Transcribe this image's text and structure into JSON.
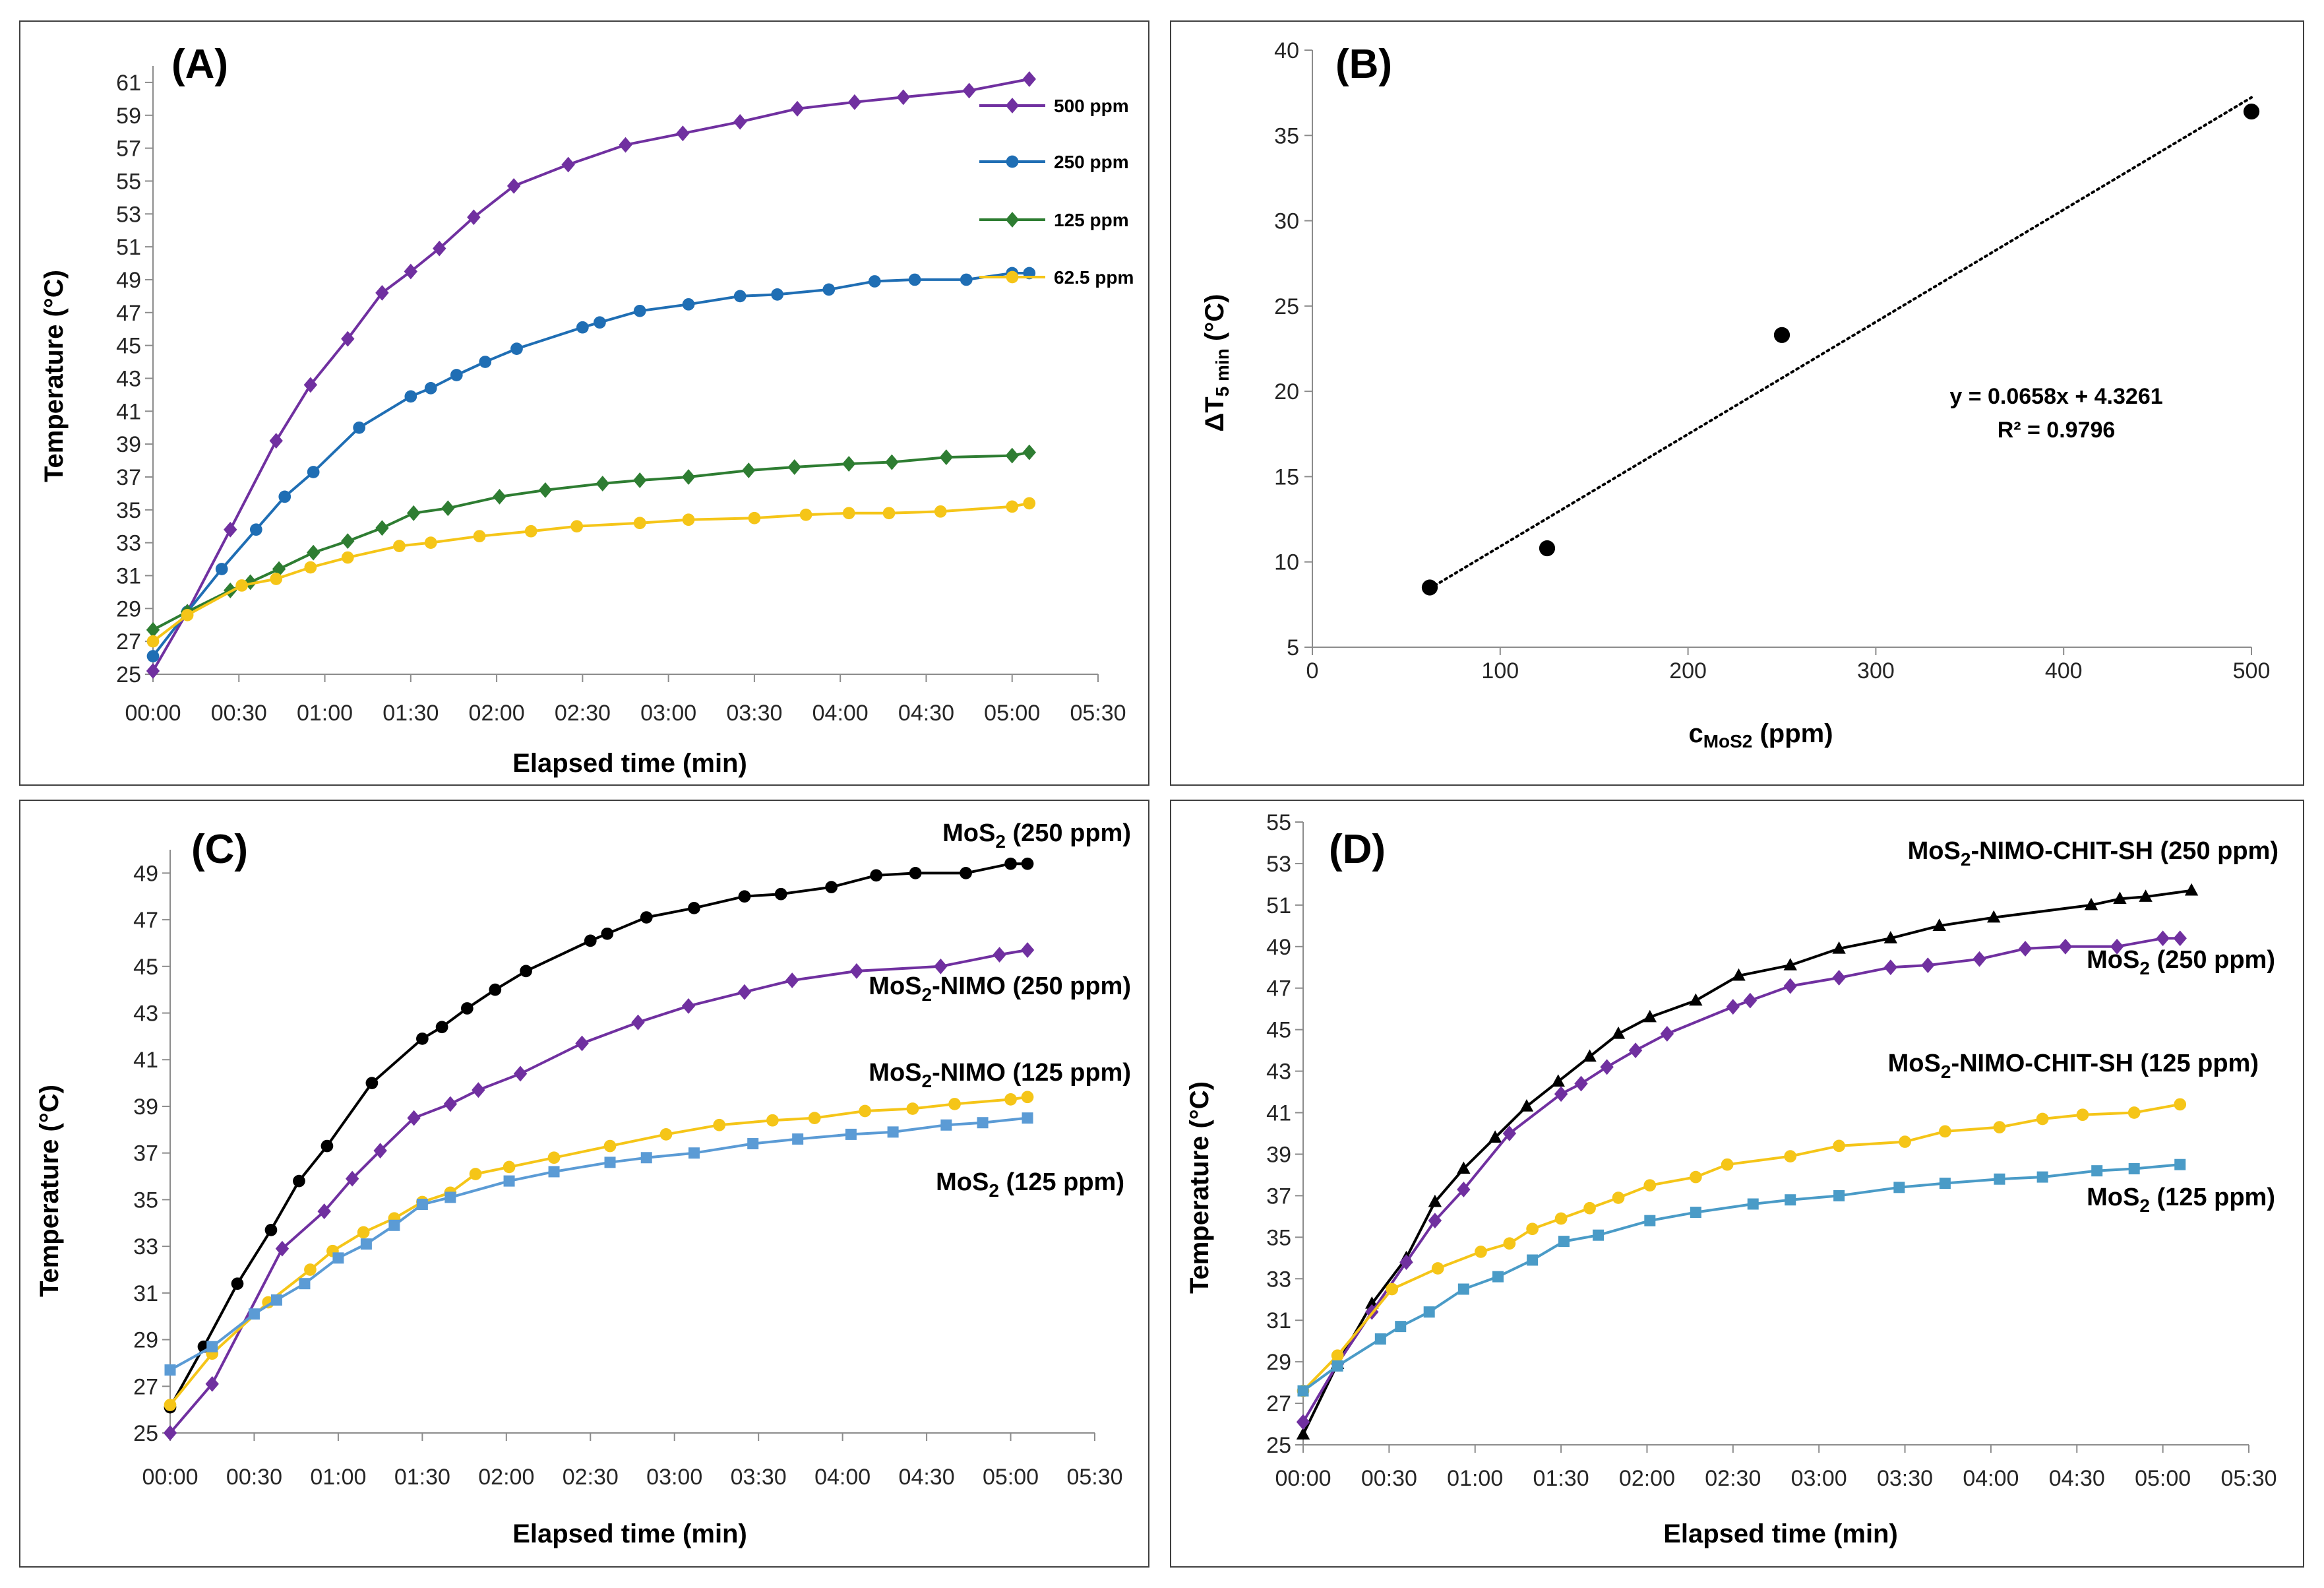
{
  "chart_data": [
    {
      "id": "A",
      "type": "line",
      "panel_label": "(A)",
      "xlabel": "Elapsed time (min)",
      "ylabel": "Temperature (°C)",
      "xlim": [
        0,
        330
      ],
      "ylim": [
        25,
        62
      ],
      "xticks": [
        0,
        30,
        60,
        90,
        120,
        150,
        180,
        210,
        240,
        270,
        300,
        330
      ],
      "xtick_labels": [
        "00:00",
        "00:30",
        "01:00",
        "01:30",
        "02:00",
        "02:30",
        "03:00",
        "03:30",
        "04:00",
        "04:30",
        "05:00",
        "05:30"
      ],
      "yticks": [
        25,
        27,
        29,
        31,
        33,
        35,
        37,
        39,
        41,
        43,
        45,
        47,
        49,
        51,
        53,
        55,
        57,
        59,
        61
      ],
      "legend_position": "top-right",
      "series": [
        {
          "name": "500 ppm",
          "color": "#7030a0",
          "marker": "diamond",
          "x": [
            0,
            12,
            27,
            43,
            55,
            68,
            80,
            90,
            100,
            112,
            126,
            145,
            165,
            185,
            205,
            225,
            245,
            262,
            285,
            306
          ],
          "y": [
            25.2,
            28.8,
            33.8,
            39.2,
            42.6,
            45.4,
            48.2,
            49.5,
            50.9,
            52.8,
            54.7,
            56.0,
            57.2,
            57.9,
            58.6,
            59.4,
            59.8,
            60.1,
            60.5,
            61.2
          ]
        },
        {
          "name": "250 ppm",
          "color": "#1f6eb4",
          "marker": "circle",
          "x": [
            0,
            12,
            24,
            36,
            46,
            56,
            72,
            90,
            97,
            106,
            116,
            127,
            150,
            156,
            170,
            187,
            205,
            218,
            236,
            252,
            266,
            284,
            300,
            306
          ],
          "y": [
            26.1,
            28.8,
            31.4,
            33.8,
            35.8,
            37.3,
            40.0,
            41.9,
            42.4,
            43.2,
            44.0,
            44.8,
            46.1,
            46.4,
            47.1,
            47.5,
            48.0,
            48.1,
            48.4,
            48.9,
            49.0,
            49.0,
            49.4,
            49.4
          ]
        },
        {
          "name": "125 ppm",
          "color": "#2e7d32",
          "marker": "diamond",
          "x": [
            0,
            12,
            27,
            34,
            44,
            56,
            68,
            80,
            91,
            103,
            121,
            137,
            157,
            170,
            187,
            208,
            224,
            243,
            258,
            277,
            300,
            306
          ],
          "y": [
            27.7,
            28.8,
            30.1,
            30.6,
            31.4,
            32.4,
            33.1,
            33.9,
            34.8,
            35.1,
            35.8,
            36.2,
            36.6,
            36.8,
            37.0,
            37.4,
            37.6,
            37.8,
            37.9,
            38.2,
            38.3,
            38.5
          ]
        },
        {
          "name": "62.5 ppm",
          "color": "#f5c518",
          "marker": "circle",
          "x": [
            0,
            12,
            31,
            43,
            55,
            68,
            86,
            97,
            114,
            132,
            148,
            170,
            187,
            210,
            228,
            243,
            257,
            275,
            300,
            306
          ],
          "y": [
            27.0,
            28.6,
            30.4,
            30.8,
            31.5,
            32.1,
            32.8,
            33.0,
            33.4,
            33.7,
            34.0,
            34.2,
            34.4,
            34.5,
            34.7,
            34.8,
            34.8,
            34.9,
            35.2,
            35.4
          ]
        }
      ]
    },
    {
      "id": "B",
      "type": "scatter",
      "panel_label": "(B)",
      "xlabel": "c",
      "xlabel_sub": "MoS2",
      "xlabel_suffix": " (ppm)",
      "ylabel": "ΔT",
      "ylabel_sub": "5 min",
      "ylabel_suffix": " (°C)",
      "xlim": [
        0,
        500
      ],
      "ylim": [
        5,
        40
      ],
      "xticks": [
        0,
        100,
        200,
        300,
        400,
        500
      ],
      "yticks": [
        5,
        10,
        15,
        20,
        25,
        30,
        35,
        40
      ],
      "points": {
        "x": [
          62.5,
          125,
          250,
          500
        ],
        "y": [
          8.5,
          10.8,
          23.3,
          36.4
        ]
      },
      "trendline": {
        "slope": 0.0658,
        "intercept": 4.3261,
        "x_range": [
          62.5,
          500
        ],
        "style": "dotted"
      },
      "equation": "y = 0.0658x + 4.3261",
      "r_squared": "R² = 0.9796",
      "marker_color": "#000000"
    },
    {
      "id": "C",
      "type": "line",
      "panel_label": "(C)",
      "xlabel": "Elapsed time (min)",
      "ylabel": "Temperature (°C)",
      "xlim": [
        0,
        330
      ],
      "ylim": [
        25,
        50
      ],
      "xticks": [
        0,
        30,
        60,
        90,
        120,
        150,
        180,
        210,
        240,
        270,
        300,
        330
      ],
      "xtick_labels": [
        "00:00",
        "00:30",
        "01:00",
        "01:30",
        "02:00",
        "02:30",
        "03:00",
        "03:30",
        "04:00",
        "04:30",
        "05:00",
        "05:30"
      ],
      "yticks": [
        25,
        27,
        29,
        31,
        33,
        35,
        37,
        39,
        41,
        43,
        45,
        47,
        49
      ],
      "series": [
        {
          "name": "MoS2 (250 ppm)",
          "label_main": "MoS",
          "label_sub": "2",
          "label_rest": " (250 ppm)",
          "color": "#000000",
          "marker": "circle",
          "x": [
            0,
            12,
            24,
            36,
            46,
            56,
            72,
            90,
            97,
            106,
            116,
            127,
            150,
            156,
            170,
            187,
            205,
            218,
            236,
            252,
            266,
            284,
            300,
            306
          ],
          "y": [
            26.1,
            28.7,
            31.4,
            33.7,
            35.8,
            37.3,
            40.0,
            41.9,
            42.4,
            43.2,
            44.0,
            44.8,
            46.1,
            46.4,
            47.1,
            47.5,
            48.0,
            48.1,
            48.4,
            48.9,
            49.0,
            49.0,
            49.4,
            49.4
          ]
        },
        {
          "name": "MoS2-NIMO (250 ppm)",
          "label_main": "MoS",
          "label_sub": "2",
          "label_rest": "-NIMO (250 ppm)",
          "color": "#7030a0",
          "marker": "diamond",
          "x": [
            0,
            15,
            40,
            55,
            65,
            75,
            87,
            100,
            110,
            125,
            147,
            167,
            185,
            205,
            222,
            245,
            275,
            296,
            306
          ],
          "y": [
            25.0,
            27.1,
            32.9,
            34.5,
            35.9,
            37.1,
            38.5,
            39.1,
            39.7,
            40.4,
            41.7,
            42.6,
            43.3,
            43.9,
            44.4,
            44.8,
            45.0,
            45.5,
            45.7
          ]
        },
        {
          "name": "MoS2-NIMO (125 ppm)",
          "label_main": "MoS",
          "label_sub": "2",
          "label_rest": "-NIMO (125 ppm)",
          "color": "#f5c518",
          "marker": "circle",
          "x": [
            0,
            15,
            35,
            50,
            58,
            69,
            80,
            90,
            100,
            109,
            121,
            137,
            157,
            177,
            196,
            215,
            230,
            248,
            265,
            280,
            300,
            306
          ],
          "y": [
            26.2,
            28.4,
            30.6,
            32.0,
            32.8,
            33.6,
            34.2,
            34.9,
            35.3,
            36.1,
            36.4,
            36.8,
            37.3,
            37.8,
            38.2,
            38.4,
            38.5,
            38.8,
            38.9,
            39.1,
            39.3,
            39.4
          ]
        },
        {
          "name": "MoS2 (125 ppm)",
          "label_main": "MoS",
          "label_sub": "2",
          "label_rest": " (125 ppm)",
          "color": "#5b9bd5",
          "marker": "square",
          "x": [
            0,
            15,
            30,
            38,
            48,
            60,
            70,
            80,
            90,
            100,
            121,
            137,
            157,
            170,
            187,
            208,
            224,
            243,
            258,
            277,
            290,
            306
          ],
          "y": [
            27.7,
            28.7,
            30.1,
            30.7,
            31.4,
            32.5,
            33.1,
            33.9,
            34.8,
            35.1,
            35.8,
            36.2,
            36.6,
            36.8,
            37.0,
            37.4,
            37.6,
            37.8,
            37.9,
            38.2,
            38.3,
            38.5
          ]
        }
      ]
    },
    {
      "id": "D",
      "type": "line",
      "panel_label": "(D)",
      "xlabel": "Elapsed time (min)",
      "ylabel": "Temperature (°C)",
      "xlim": [
        0,
        330
      ],
      "ylim": [
        25,
        55
      ],
      "xticks": [
        0,
        30,
        60,
        90,
        120,
        150,
        180,
        210,
        240,
        270,
        300,
        330
      ],
      "xtick_labels": [
        "00:00",
        "00:30",
        "01:00",
        "01:30",
        "02:00",
        "02:30",
        "03:00",
        "03:30",
        "04:00",
        "04:30",
        "05:00",
        "05:30"
      ],
      "yticks": [
        25,
        27,
        29,
        31,
        33,
        35,
        37,
        39,
        41,
        43,
        45,
        47,
        49,
        51,
        53,
        55
      ],
      "series": [
        {
          "name": "MoS2-NIMO-CHIT-SH (250 ppm)",
          "label_main": "MoS",
          "label_sub": "2",
          "label_rest": "-NIMO-CHIT-SH (250 ppm)",
          "color": "#000000",
          "marker": "triangle",
          "x": [
            0,
            12,
            24,
            36,
            46,
            56,
            67,
            78,
            89,
            100,
            110,
            121,
            137,
            152,
            170,
            187,
            205,
            222,
            241,
            275,
            285,
            294,
            310
          ],
          "y": [
            25.5,
            28.9,
            31.8,
            34.0,
            36.7,
            38.3,
            39.8,
            41.3,
            42.5,
            43.7,
            44.8,
            45.6,
            46.4,
            47.6,
            48.1,
            48.9,
            49.4,
            50.0,
            50.4,
            51.0,
            51.3,
            51.4,
            51.7
          ]
        },
        {
          "name": "MoS2 (250 ppm)",
          "label_main": "MoS",
          "label_sub": "2",
          "label_rest": " (250 ppm)",
          "color": "#7030a0",
          "marker": "diamond",
          "x": [
            0,
            12,
            24,
            36,
            46,
            56,
            72,
            90,
            97,
            106,
            116,
            127,
            150,
            156,
            170,
            187,
            205,
            218,
            236,
            252,
            266,
            284,
            300,
            306
          ],
          "y": [
            26.1,
            28.9,
            31.4,
            33.8,
            35.8,
            37.3,
            40.0,
            41.9,
            42.4,
            43.2,
            44.0,
            44.8,
            46.1,
            46.4,
            47.1,
            47.5,
            48.0,
            48.1,
            48.4,
            48.9,
            49.0,
            49.0,
            49.4,
            49.4
          ]
        },
        {
          "name": "MoS2-NIMO-CHIT-SH (125 ppm)",
          "label_main": "MoS",
          "label_sub": "2",
          "label_rest": "-NIMO-CHIT-SH  (125 ppm)",
          "color": "#f5c518",
          "marker": "circle",
          "x": [
            0,
            12,
            31,
            47,
            62,
            72,
            80,
            90,
            100,
            110,
            121,
            137,
            148,
            170,
            187,
            210,
            224,
            243,
            258,
            272,
            290,
            306
          ],
          "y": [
            27.6,
            29.3,
            32.5,
            33.5,
            34.3,
            34.7,
            35.4,
            35.9,
            36.4,
            36.9,
            37.5,
            37.9,
            38.5,
            38.9,
            39.4,
            39.6,
            40.1,
            40.3,
            40.7,
            40.9,
            41.0,
            41.4
          ]
        },
        {
          "name": "MoS2 (125 ppm)",
          "label_main": "MoS",
          "label_sub": "2",
          "label_rest": " (125 ppm)",
          "color": "#4a9bc7",
          "marker": "square",
          "x": [
            0,
            12,
            27,
            34,
            44,
            56,
            68,
            80,
            91,
            103,
            121,
            137,
            157,
            170,
            187,
            208,
            224,
            243,
            258,
            277,
            290,
            306
          ],
          "y": [
            27.6,
            28.8,
            30.1,
            30.7,
            31.4,
            32.5,
            33.1,
            33.9,
            34.8,
            35.1,
            35.8,
            36.2,
            36.6,
            36.8,
            37.0,
            37.4,
            37.6,
            37.8,
            37.9,
            38.2,
            38.3,
            38.5
          ]
        }
      ]
    }
  ]
}
